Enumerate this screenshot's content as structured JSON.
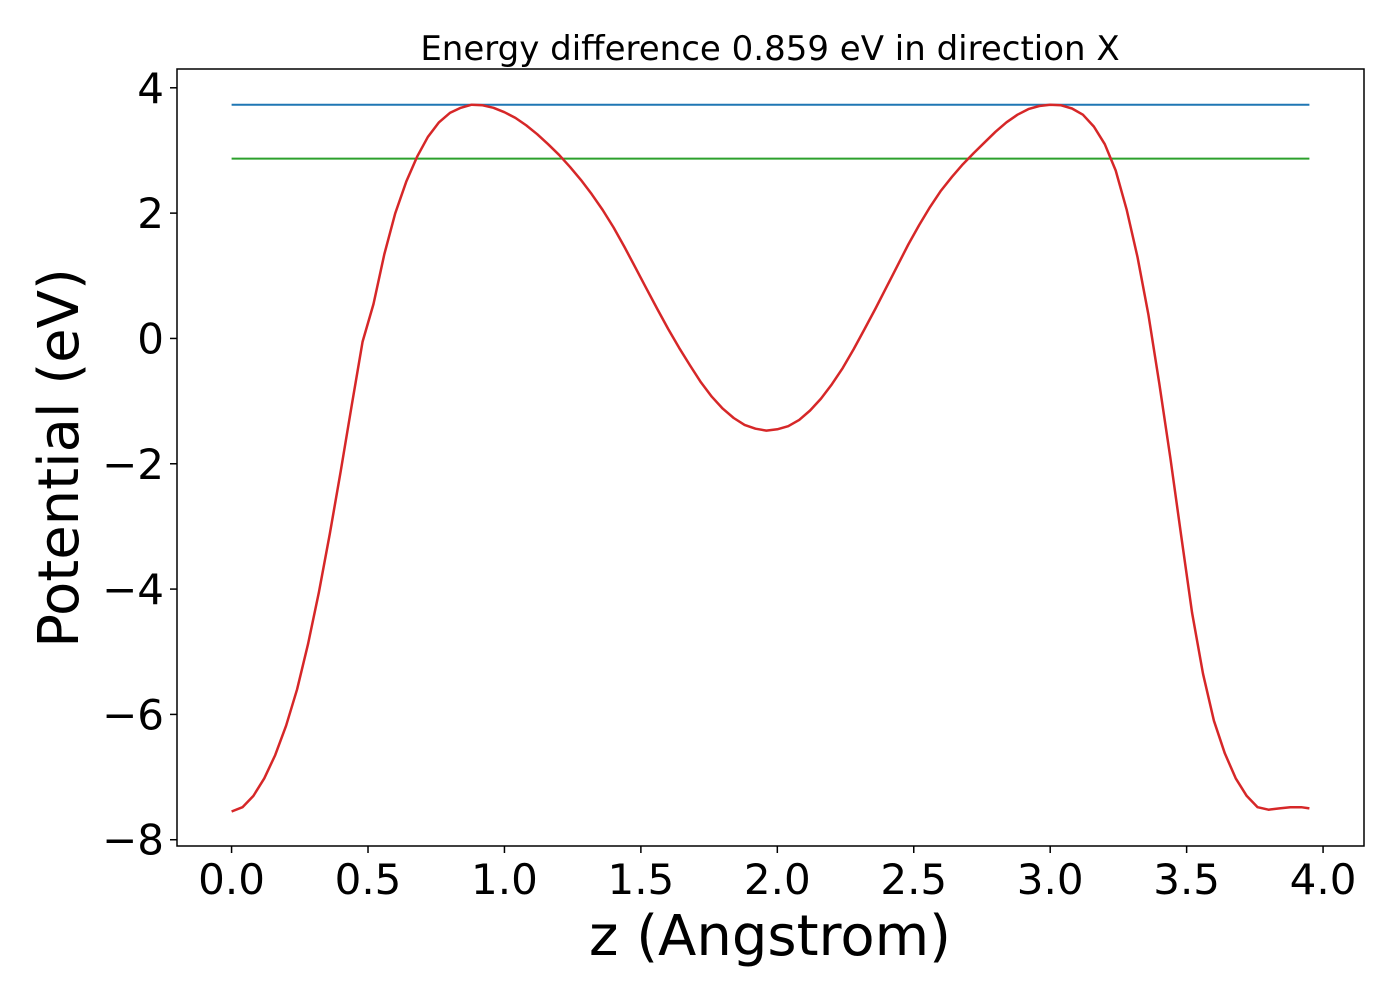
{
  "chart_data": {
    "type": "line",
    "title": "Energy difference 0.859 eV in direction X",
    "xlabel": "z (Angstrom)",
    "ylabel": "Potential (eV)",
    "xlim": [
      -0.2,
      4.15
    ],
    "ylim": [
      -8.1,
      4.3
    ],
    "xticks": [
      0.0,
      0.5,
      1.0,
      1.5,
      2.0,
      2.5,
      3.0,
      3.5,
      4.0
    ],
    "xtick_labels": [
      "0.0",
      "0.5",
      "1.0",
      "1.5",
      "2.0",
      "2.5",
      "3.0",
      "3.5",
      "4.0"
    ],
    "yticks": [
      -8,
      -6,
      -4,
      -2,
      0,
      2,
      4
    ],
    "ytick_labels": [
      "−8",
      "−6",
      "−4",
      "−2",
      "0",
      "2",
      "4"
    ],
    "grid": false,
    "series": [
      {
        "color": "#1f77b4",
        "x": [
          0.0,
          3.95
        ],
        "y": [
          3.73,
          3.73
        ]
      },
      {
        "color": "#2ca02c",
        "x": [
          0.0,
          3.95
        ],
        "y": [
          2.87,
          2.87
        ]
      },
      {
        "color": "#d62728",
        "x": [
          0.0,
          0.04,
          0.08,
          0.12,
          0.16,
          0.2,
          0.24,
          0.28,
          0.32,
          0.36,
          0.4,
          0.44,
          0.48,
          0.52,
          0.56,
          0.6,
          0.64,
          0.68,
          0.72,
          0.76,
          0.8,
          0.84,
          0.88,
          0.92,
          0.96,
          1.0,
          1.04,
          1.08,
          1.12,
          1.16,
          1.2,
          1.24,
          1.28,
          1.32,
          1.36,
          1.4,
          1.44,
          1.48,
          1.52,
          1.56,
          1.6,
          1.64,
          1.68,
          1.72,
          1.76,
          1.8,
          1.84,
          1.88,
          1.92,
          1.96,
          2.0,
          2.04,
          2.08,
          2.12,
          2.16,
          2.2,
          2.24,
          2.28,
          2.32,
          2.36,
          2.4,
          2.44,
          2.48,
          2.52,
          2.56,
          2.6,
          2.64,
          2.68,
          2.72,
          2.76,
          2.8,
          2.84,
          2.88,
          2.92,
          2.96,
          3.0,
          3.04,
          3.08,
          3.12,
          3.16,
          3.2,
          3.24,
          3.28,
          3.32,
          3.36,
          3.4,
          3.44,
          3.48,
          3.52,
          3.56,
          3.6,
          3.64,
          3.68,
          3.72,
          3.76,
          3.8,
          3.84,
          3.88,
          3.92,
          3.95
        ],
        "y": [
          -7.55,
          -7.48,
          -7.3,
          -7.02,
          -6.65,
          -6.18,
          -5.6,
          -4.88,
          -4.05,
          -3.12,
          -2.12,
          -1.08,
          -0.05,
          0.55,
          1.35,
          2.0,
          2.5,
          2.9,
          3.22,
          3.45,
          3.6,
          3.68,
          3.73,
          3.72,
          3.68,
          3.61,
          3.52,
          3.4,
          3.26,
          3.1,
          2.93,
          2.74,
          2.53,
          2.3,
          2.05,
          1.77,
          1.46,
          1.13,
          0.8,
          0.47,
          0.15,
          -0.15,
          -0.43,
          -0.7,
          -0.93,
          -1.12,
          -1.27,
          -1.38,
          -1.44,
          -1.47,
          -1.45,
          -1.4,
          -1.3,
          -1.15,
          -0.96,
          -0.73,
          -0.47,
          -0.17,
          0.15,
          0.48,
          0.82,
          1.16,
          1.5,
          1.81,
          2.1,
          2.36,
          2.58,
          2.78,
          2.96,
          3.13,
          3.3,
          3.45,
          3.57,
          3.66,
          3.71,
          3.73,
          3.72,
          3.67,
          3.57,
          3.38,
          3.1,
          2.68,
          2.06,
          1.3,
          0.38,
          -0.72,
          -1.9,
          -3.15,
          -4.38,
          -5.35,
          -6.1,
          -6.62,
          -7.02,
          -7.3,
          -7.48,
          -7.52,
          -7.5,
          -7.48,
          -7.48,
          -7.5
        ]
      }
    ]
  }
}
